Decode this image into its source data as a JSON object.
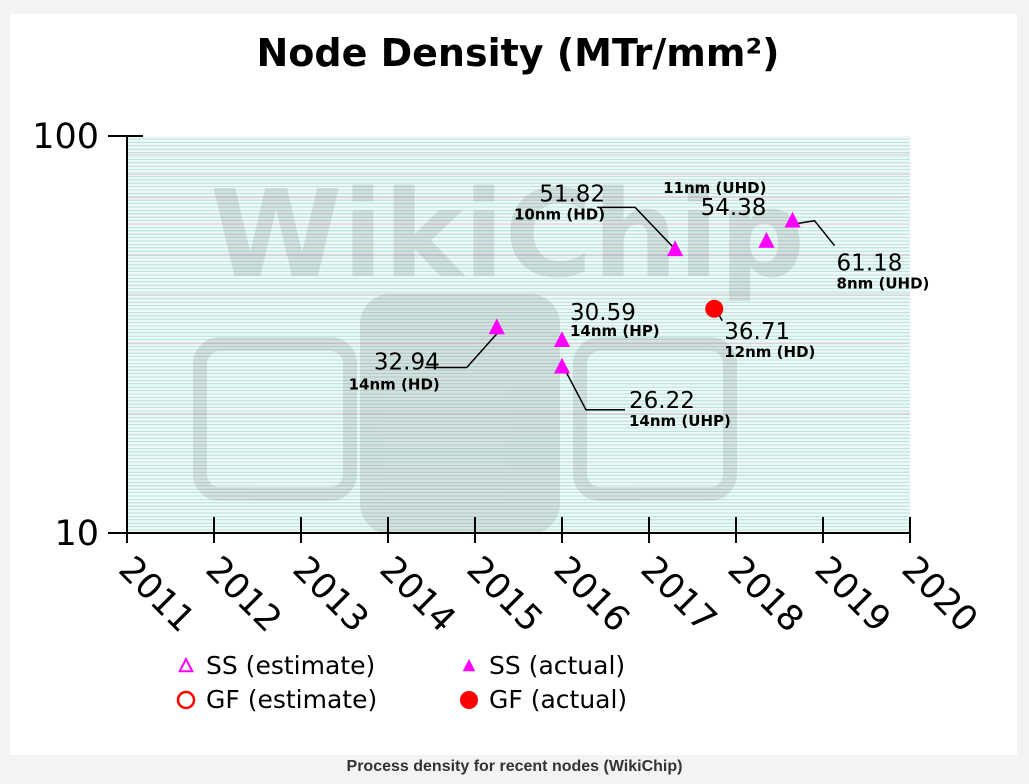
{
  "caption": "Process density for recent nodes (WikiChip)",
  "colors": {
    "ss": "#ff00ff",
    "gf": "#ff0000",
    "plot_bg": "#eef8f6",
    "axis": "#000000"
  },
  "chart_data": {
    "type": "scatter",
    "title": "Node Density (MTr/mm²)",
    "yscale": "log",
    "ylim": [
      10,
      100
    ],
    "yticks": [
      {
        "value": 10,
        "label": "10"
      },
      {
        "value": 100,
        "label": "100"
      }
    ],
    "xlim": [
      2011,
      2020
    ],
    "xticks": [
      "2011",
      "2012",
      "2013",
      "2014",
      "2015",
      "2016",
      "2017",
      "2018",
      "2019",
      "2020"
    ],
    "series": [
      {
        "name": "SS (actual)",
        "marker": "triangle-filled",
        "color": "#ff00ff",
        "points": [
          {
            "x": 2015.25,
            "y": 32.94,
            "value_label": "32.94",
            "node_label": "14nm (HD)"
          },
          {
            "x": 2016.0,
            "y": 30.59,
            "value_label": "30.59",
            "node_label": "14nm (HP)"
          },
          {
            "x": 2016.0,
            "y": 26.22,
            "value_label": "26.22",
            "node_label": "14nm (UHP)"
          },
          {
            "x": 2017.3,
            "y": 51.82,
            "value_label": "51.82",
            "node_label": "10nm (HD)"
          },
          {
            "x": 2018.35,
            "y": 54.38,
            "value_label": "54.38",
            "node_label": "11nm (UHD)"
          },
          {
            "x": 2018.65,
            "y": 61.18,
            "value_label": "61.18",
            "node_label": "8nm (UHD)"
          }
        ]
      },
      {
        "name": "GF (actual)",
        "marker": "circle-filled",
        "color": "#ff0000",
        "points": [
          {
            "x": 2017.75,
            "y": 36.71,
            "value_label": "36.71",
            "node_label": "12nm (HD)"
          }
        ]
      }
    ],
    "legend": [
      {
        "label": "SS (estimate)",
        "marker": "triangle-open",
        "color": "#ff00ff"
      },
      {
        "label": "SS (actual)",
        "marker": "triangle-filled",
        "color": "#ff00ff"
      },
      {
        "label": "GF (estimate)",
        "marker": "circle-open",
        "color": "#ff0000"
      },
      {
        "label": "GF (actual)",
        "marker": "circle-filled",
        "color": "#ff0000"
      }
    ],
    "watermark": "WikiChip"
  }
}
